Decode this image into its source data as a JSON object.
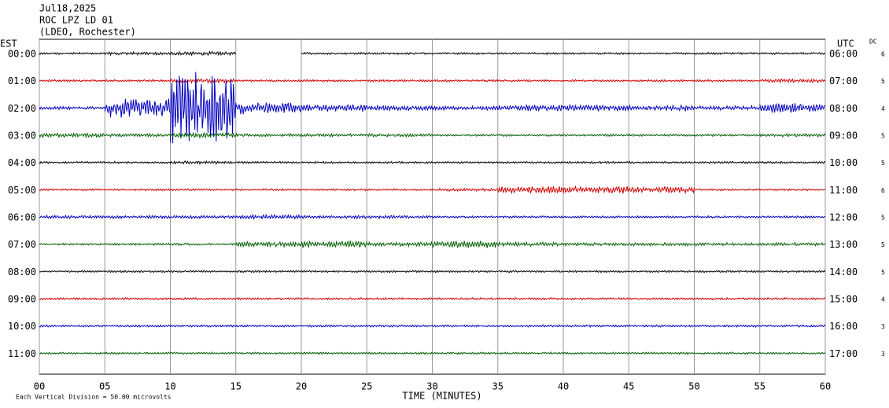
{
  "chart_data": {
    "type": "helicorder",
    "title_lines": [
      "Jul18,2025",
      "ROC LPZ LD 01",
      "(LDEO, Rochester)"
    ],
    "left_header": "EST",
    "right_header": "UTC",
    "dc_header": "DC",
    "xlabel": "TIME (MINUTES)",
    "xlim": [
      0,
      60
    ],
    "xticks": [
      {
        "value": 0,
        "label": "00"
      },
      {
        "value": 5,
        "label": "05"
      },
      10,
      15,
      20,
      25,
      30,
      35,
      40,
      45,
      50,
      55,
      60
    ],
    "grid": true,
    "division": {
      "value": 50,
      "label": "Each Vertical Division =   50.00 microvolts"
    },
    "rows": [
      {
        "est": "00:00",
        "utc": "06:00",
        "dc": 6,
        "color": "#000000",
        "envelope": [
          2,
          3,
          4,
          null,
          2,
          2,
          2,
          2,
          2,
          2,
          2,
          2
        ]
      },
      {
        "est": "01:00",
        "utc": "07:00",
        "dc": 5,
        "color": "#d00000",
        "envelope": [
          2,
          2,
          4,
          2,
          2,
          2,
          2,
          2,
          2,
          2,
          2,
          4
        ]
      },
      {
        "est": "02:00",
        "utc": "08:00",
        "dc": 4,
        "color": "#0000c0",
        "envelope": [
          3,
          18,
          70,
          12,
          7,
          5,
          4,
          6,
          6,
          5,
          4,
          9
        ]
      },
      {
        "est": "03:00",
        "utc": "09:00",
        "dc": 5,
        "color": "#006000",
        "envelope": [
          4,
          3,
          5,
          3,
          3,
          3,
          2,
          2,
          2,
          2,
          2,
          3
        ]
      },
      {
        "est": "04:00",
        "utc": "10:00",
        "dc": 5,
        "color": "#000000",
        "envelope": [
          2,
          2,
          3,
          2,
          2,
          2,
          2,
          2,
          2,
          2,
          2,
          2
        ]
      },
      {
        "est": "05:00",
        "utc": "11:00",
        "dc": 6,
        "color": "#d00000",
        "envelope": [
          2,
          2,
          2,
          2,
          2,
          2,
          3,
          7,
          8,
          6,
          2,
          2
        ]
      },
      {
        "est": "06:00",
        "utc": "12:00",
        "dc": 5,
        "color": "#0000c0",
        "envelope": [
          3,
          3,
          3,
          4,
          3,
          3,
          2,
          2,
          2,
          2,
          2,
          2
        ]
      },
      {
        "est": "07:00",
        "utc": "13:00",
        "dc": 5,
        "color": "#006000",
        "envelope": [
          2,
          2,
          2,
          5,
          7,
          4,
          7,
          4,
          3,
          3,
          3,
          3
        ]
      },
      {
        "est": "08:00",
        "utc": "14:00",
        "dc": 5,
        "color": "#000000",
        "envelope": [
          2,
          2,
          2,
          2,
          2,
          2,
          2,
          2,
          2,
          2,
          2,
          2
        ]
      },
      {
        "est": "09:00",
        "utc": "15:00",
        "dc": 4,
        "color": "#d00000",
        "envelope": [
          2,
          2,
          2,
          2,
          2,
          2,
          2,
          2,
          2,
          2,
          2,
          2
        ]
      },
      {
        "est": "10:00",
        "utc": "16:00",
        "dc": 3,
        "color": "#0000c0",
        "envelope": [
          2,
          2,
          2,
          2,
          2,
          2,
          2,
          2,
          2,
          2,
          2,
          2
        ]
      },
      {
        "est": "11:00",
        "utc": "17:00",
        "dc": 3,
        "color": "#006000",
        "envelope": [
          2,
          2,
          2,
          2,
          2,
          2,
          2,
          2,
          2,
          2,
          2,
          2
        ]
      }
    ]
  }
}
